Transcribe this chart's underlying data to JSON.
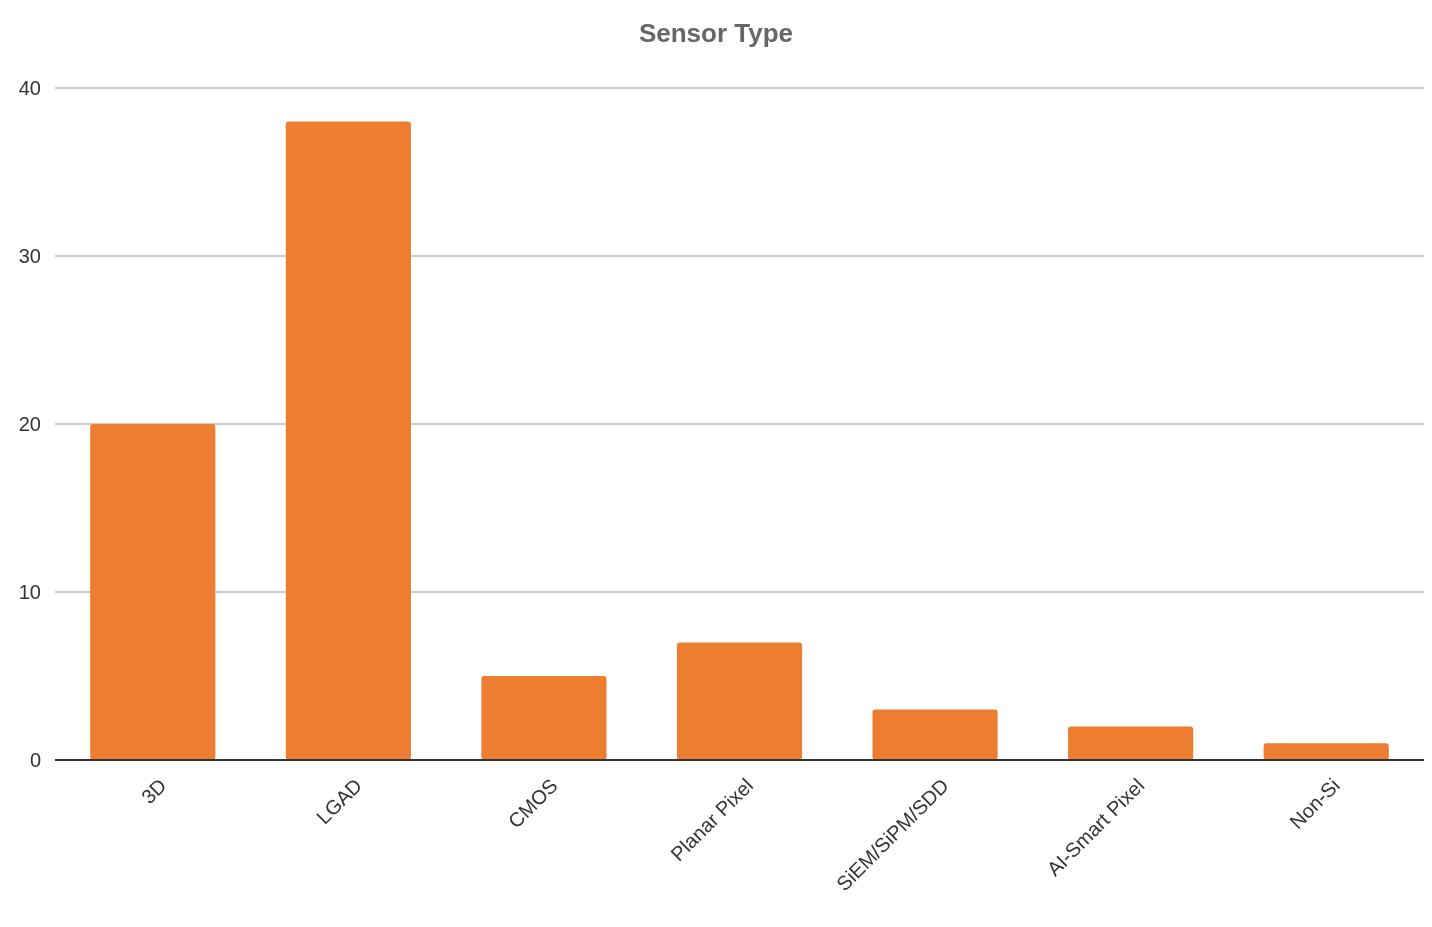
{
  "chart_data": {
    "type": "bar",
    "title": "Sensor Type",
    "categories": [
      "3D",
      "LGAD",
      "CMOS",
      "Planar Pixel",
      "SiEM/SiPM/SDD",
      "AI-Smart Pixel",
      "Non-Si"
    ],
    "values": [
      20,
      38,
      5,
      7,
      3,
      2,
      1
    ],
    "color": "#ed7d31",
    "ylim": [
      0,
      40
    ],
    "yticks": [
      0,
      10,
      20,
      30,
      40
    ],
    "grid": "y"
  }
}
